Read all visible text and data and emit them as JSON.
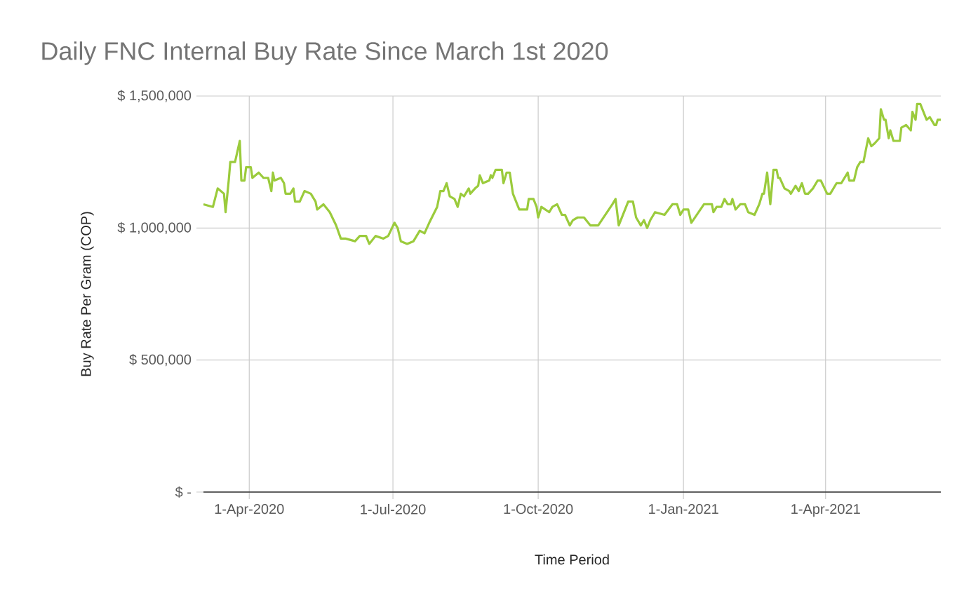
{
  "chart_data": {
    "type": "line",
    "title": "Daily FNC Internal Buy Rate Since March 1st 2020",
    "xlabel": "Time Period",
    "ylabel": "Buy Rate Per Gram (COP)",
    "xlim": [
      "2020-03-03",
      "2021-06-13"
    ],
    "xticks": [
      {
        "value": "2020-04-01",
        "label": "1-Apr-2020"
      },
      {
        "value": "2020-07-01",
        "label": "1-Jul-2020"
      },
      {
        "value": "2020-10-01",
        "label": "1-Oct-2020"
      },
      {
        "value": "2021-01-01",
        "label": "1-Jan-2021"
      },
      {
        "value": "2021-04-01",
        "label": "1-Apr-2021"
      }
    ],
    "ylim": [
      0,
      1500000
    ],
    "yticks": [
      {
        "value": 0,
        "label": "$ -"
      },
      {
        "value": 500000,
        "label": "$ 500,000"
      },
      {
        "value": 1000000,
        "label": "$ 1,000,000"
      },
      {
        "value": 1500000,
        "label": "$ 1,500,000"
      }
    ],
    "grid": true,
    "series": [
      {
        "color": "#9bcb3c",
        "x": [
          "2020-03-03",
          "2020-03-09",
          "2020-03-12",
          "2020-03-16",
          "2020-03-17",
          "2020-03-19",
          "2020-03-20",
          "2020-03-23",
          "2020-03-26",
          "2020-03-27",
          "2020-03-29",
          "2020-03-30",
          "2020-04-02",
          "2020-04-03",
          "2020-04-07",
          "2020-04-10",
          "2020-04-13",
          "2020-04-15",
          "2020-04-16",
          "2020-04-17",
          "2020-04-21",
          "2020-04-23",
          "2020-04-24",
          "2020-04-27",
          "2020-04-29",
          "2020-04-30",
          "2020-05-03",
          "2020-05-06",
          "2020-05-10",
          "2020-05-13",
          "2020-05-14",
          "2020-05-18",
          "2020-05-22",
          "2020-05-26",
          "2020-05-29",
          "2020-06-01",
          "2020-06-07",
          "2020-06-10",
          "2020-06-14",
          "2020-06-16",
          "2020-06-20",
          "2020-06-25",
          "2020-06-28",
          "2020-07-02",
          "2020-07-04",
          "2020-07-06",
          "2020-07-10",
          "2020-07-14",
          "2020-07-18",
          "2020-07-21",
          "2020-07-24",
          "2020-07-29",
          "2020-07-31",
          "2020-08-02",
          "2020-08-04",
          "2020-08-06",
          "2020-08-09",
          "2020-08-11",
          "2020-08-13",
          "2020-08-15",
          "2020-08-18",
          "2020-08-19",
          "2020-08-22",
          "2020-08-24",
          "2020-08-25",
          "2020-08-27",
          "2020-08-31",
          "2020-09-01",
          "2020-09-02",
          "2020-09-04",
          "2020-09-08",
          "2020-09-09",
          "2020-09-11",
          "2020-09-13",
          "2020-09-15",
          "2020-09-17",
          "2020-09-19",
          "2020-09-22",
          "2020-09-24",
          "2020-09-25",
          "2020-09-28",
          "2020-09-30",
          "2020-10-01",
          "2020-10-03",
          "2020-10-08",
          "2020-10-10",
          "2020-10-13",
          "2020-10-16",
          "2020-10-18",
          "2020-10-21",
          "2020-10-23",
          "2020-10-26",
          "2020-10-30",
          "2020-11-03",
          "2020-11-08",
          "2020-11-17",
          "2020-11-19",
          "2020-11-21",
          "2020-11-27",
          "2020-11-30",
          "2020-12-02",
          "2020-12-05",
          "2020-12-07",
          "2020-12-09",
          "2020-12-11",
          "2020-12-14",
          "2020-12-20",
          "2020-12-25",
          "2020-12-28",
          "2020-12-30",
          "2021-01-01",
          "2021-01-04",
          "2021-01-06",
          "2021-01-14",
          "2021-01-19",
          "2021-01-20",
          "2021-01-22",
          "2021-01-25",
          "2021-01-27",
          "2021-01-29",
          "2021-01-31",
          "2021-02-01",
          "2021-02-03",
          "2021-02-06",
          "2021-02-09",
          "2021-02-11",
          "2021-02-15",
          "2021-02-18",
          "2021-02-20",
          "2021-02-21",
          "2021-02-23",
          "2021-02-25",
          "2021-02-27",
          "2021-03-01",
          "2021-03-02",
          "2021-03-03",
          "2021-03-06",
          "2021-03-09",
          "2021-03-10",
          "2021-03-13",
          "2021-03-15",
          "2021-03-17",
          "2021-03-19",
          "2021-03-21",
          "2021-03-24",
          "2021-03-27",
          "2021-03-29",
          "2021-04-02",
          "2021-04-04",
          "2021-04-08",
          "2021-04-11",
          "2021-04-15",
          "2021-04-16",
          "2021-04-19",
          "2021-04-21",
          "2021-04-23",
          "2021-04-25",
          "2021-04-28",
          "2021-04-30",
          "2021-05-02",
          "2021-05-05",
          "2021-05-06",
          "2021-05-08",
          "2021-05-09",
          "2021-05-11",
          "2021-05-12",
          "2021-05-14",
          "2021-05-18",
          "2021-05-19",
          "2021-05-22",
          "2021-05-25",
          "2021-05-26",
          "2021-05-28",
          "2021-05-29",
          "2021-05-31",
          "2021-06-02",
          "2021-06-04",
          "2021-06-06",
          "2021-06-09",
          "2021-06-10",
          "2021-06-11",
          "2021-06-13"
        ],
        "values": [
          1090000,
          1080000,
          1150000,
          1130000,
          1060000,
          1180000,
          1250000,
          1250000,
          1330000,
          1180000,
          1180000,
          1230000,
          1230000,
          1190000,
          1210000,
          1190000,
          1190000,
          1140000,
          1210000,
          1180000,
          1190000,
          1170000,
          1130000,
          1130000,
          1150000,
          1100000,
          1100000,
          1140000,
          1130000,
          1100000,
          1070000,
          1090000,
          1060000,
          1010000,
          960000,
          960000,
          950000,
          970000,
          970000,
          940000,
          970000,
          960000,
          970000,
          1020000,
          1000000,
          950000,
          940000,
          950000,
          990000,
          980000,
          1020000,
          1080000,
          1140000,
          1140000,
          1170000,
          1120000,
          1110000,
          1080000,
          1130000,
          1120000,
          1150000,
          1130000,
          1150000,
          1160000,
          1200000,
          1170000,
          1180000,
          1200000,
          1190000,
          1220000,
          1220000,
          1170000,
          1210000,
          1210000,
          1130000,
          1100000,
          1070000,
          1070000,
          1070000,
          1110000,
          1110000,
          1080000,
          1040000,
          1080000,
          1060000,
          1080000,
          1090000,
          1050000,
          1050000,
          1010000,
          1030000,
          1040000,
          1040000,
          1010000,
          1010000,
          1090000,
          1110000,
          1010000,
          1100000,
          1100000,
          1040000,
          1010000,
          1030000,
          1000000,
          1030000,
          1060000,
          1050000,
          1090000,
          1090000,
          1050000,
          1070000,
          1070000,
          1020000,
          1090000,
          1090000,
          1060000,
          1080000,
          1080000,
          1110000,
          1090000,
          1090000,
          1110000,
          1070000,
          1090000,
          1090000,
          1060000,
          1050000,
          1090000,
          1130000,
          1130000,
          1210000,
          1090000,
          1220000,
          1220000,
          1190000,
          1190000,
          1150000,
          1140000,
          1130000,
          1160000,
          1140000,
          1170000,
          1130000,
          1130000,
          1150000,
          1180000,
          1180000,
          1130000,
          1130000,
          1170000,
          1170000,
          1210000,
          1180000,
          1180000,
          1230000,
          1250000,
          1250000,
          1340000,
          1310000,
          1320000,
          1340000,
          1450000,
          1410000,
          1410000,
          1340000,
          1370000,
          1330000,
          1330000,
          1380000,
          1390000,
          1370000,
          1440000,
          1410000,
          1470000,
          1470000,
          1440000,
          1410000,
          1420000,
          1390000,
          1390000,
          1410000,
          1410000
        ]
      }
    ]
  }
}
